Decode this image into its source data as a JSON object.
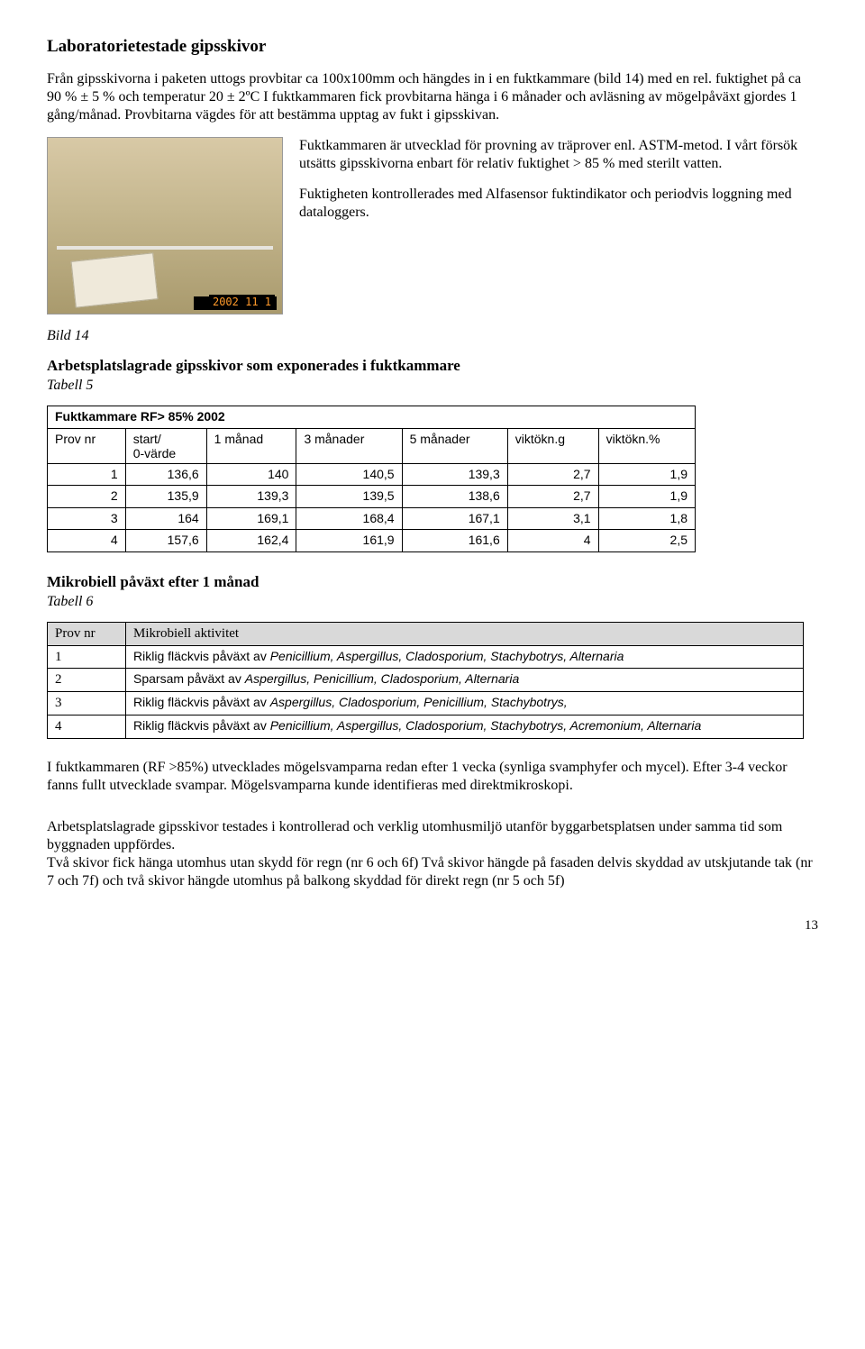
{
  "heading1": "Laboratorietestade gipsskivor",
  "intro": "Från gipsskivorna i paketen uttogs provbitar ca 100x100mm och hängdes in i en fuktkammare (bild 14) med en rel. fuktighet på ca 90 % ± 5 % och temperatur 20 ± 2ºC I fuktkammaren fick provbitarna hänga i 6 månader och avläsning av mögelpåväxt gjordes 1 gång/månad. Provbitarna vägdes för att bestämma upptag av fukt i gipsskivan.",
  "photo_date": "2002 11 1",
  "col_p1": "Fuktkammaren är utvecklad för provning av träprover enl. ASTM-metod. I vårt försök utsätts gipsskivorna enbart för relativ fuktighet > 85 % med sterilt vatten.",
  "col_p2": "Fuktigheten kontrollerades med Alfasensor fuktindikator och periodvis loggning med dataloggers.",
  "caption14": "Bild 14",
  "subhead_t5": "Arbetsplatslagrade gipsskivor som exponerades i fuktkammare",
  "caption_t5": "Tabell 5",
  "t5": {
    "title": "Fuktkammare RF> 85%  2002",
    "headers": [
      "Prov nr",
      "start/\n0-värde",
      "1 månad",
      "3 månader",
      "5 månader",
      "viktökn.g",
      "viktökn.%"
    ],
    "rows": [
      [
        "1",
        "136,6",
        "140",
        "140,5",
        "139,3",
        "2,7",
        "1,9"
      ],
      [
        "2",
        "135,9",
        "139,3",
        "139,5",
        "138,6",
        "2,7",
        "1,9"
      ],
      [
        "3",
        "164",
        "169,1",
        "168,4",
        "167,1",
        "3,1",
        "1,8"
      ],
      [
        "4",
        "157,6",
        "162,4",
        "161,9",
        "161,6",
        "4",
        "2,5"
      ]
    ]
  },
  "heading_t6": "Mikrobiell påväxt efter 1 månad",
  "caption_t6": "Tabell 6",
  "t6": {
    "headers": [
      "Prov nr",
      "Mikrobiell aktivitet"
    ],
    "rows": [
      {
        "n": "1",
        "pre": "Riklig fläckvis påväxt av ",
        "sp": "Penicillium, Aspergillus, Cladosporium, Stachybotrys, Alternaria"
      },
      {
        "n": "2",
        "pre": "Sparsam påväxt av ",
        "sp": "Aspergillus, Penicillium, Cladosporium, Alternaria"
      },
      {
        "n": "3",
        "pre": "Riklig fläckvis påväxt av ",
        "sp": "Aspergillus, Cladosporium, Penicillium, Stachybotrys,"
      },
      {
        "n": "4",
        "pre": "Riklig fläckvis påväxt av ",
        "sp": "Penicillium, Aspergillus, Cladosporium, Stachybotrys, Acremonium, Alternaria"
      }
    ]
  },
  "para_after_t6": "I fuktkammaren (RF >85%) utvecklades mögelsvamparna redan efter 1 vecka (synliga svamphyfer och mycel). Efter 3-4 veckor fanns fullt utvecklade svampar. Mögelsvamparna kunde identifieras med direktmikroskopi.",
  "para_last": "Arbetsplatslagrade gipsskivor testades i kontrollerad och verklig utomhusmiljö utanför byggarbetsplatsen under samma tid som byggnaden uppfördes.\nTvå skivor fick hänga utomhus utan skydd för regn (nr 6 och 6f) Två skivor hängde på fasaden delvis skyddad av utskjutande tak (nr 7 och 7f) och två skivor hängde utomhus på balkong skyddad för direkt regn (nr 5 och 5f)",
  "page_number": "13"
}
